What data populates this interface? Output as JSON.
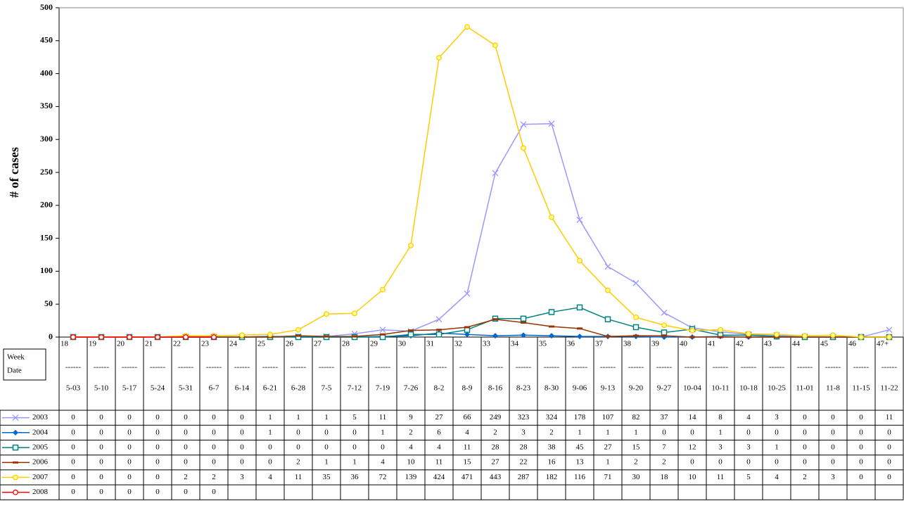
{
  "chart_data": {
    "type": "line",
    "y_label": "# of cases",
    "row_header_labels": [
      "Week",
      "Date"
    ],
    "separator": "------",
    "categories": [
      "18",
      "19",
      "20",
      "21",
      "22",
      "23",
      "24",
      "25",
      "26",
      "27",
      "28",
      "29",
      "30",
      "31",
      "32",
      "33",
      "34",
      "35",
      "36",
      "37",
      "38",
      "39",
      "40",
      "41",
      "42",
      "43",
      "44",
      "45",
      "46",
      "47+"
    ],
    "dates": [
      "5-03",
      "5-10",
      "5-17",
      "5-24",
      "5-31",
      "6-7",
      "6-14",
      "6-21",
      "6-28",
      "7-5",
      "7-12",
      "7-19",
      "7-26",
      "8-2",
      "8-9",
      "8-16",
      "8-23",
      "8-30",
      "9-06",
      "9-13",
      "9-20",
      "9-27",
      "10-04",
      "10-11",
      "10-18",
      "10-25",
      "11-01",
      "11-8",
      "11-15",
      "11-22"
    ],
    "ylim": [
      0,
      500
    ],
    "yticks": [
      0,
      50,
      100,
      150,
      200,
      250,
      300,
      350,
      400,
      450,
      500
    ],
    "series": [
      {
        "name": "2003",
        "color": "#9999ff",
        "marker": "x",
        "values": [
          0,
          0,
          0,
          0,
          0,
          0,
          0,
          1,
          1,
          1,
          5,
          11,
          9,
          27,
          66,
          249,
          323,
          324,
          178,
          107,
          82,
          37,
          14,
          8,
          4,
          3,
          0,
          0,
          0,
          11
        ]
      },
      {
        "name": "2004",
        "color": "#0066cc",
        "marker": "diamond",
        "values": [
          0,
          0,
          0,
          0,
          0,
          0,
          0,
          1,
          0,
          0,
          0,
          1,
          2,
          6,
          4,
          2,
          3,
          2,
          1,
          1,
          1,
          0,
          0,
          1,
          0,
          0,
          0,
          0,
          0,
          0
        ]
      },
      {
        "name": "2005",
        "color": "#008080",
        "marker": "square",
        "values": [
          0,
          0,
          0,
          0,
          0,
          0,
          0,
          0,
          0,
          0,
          0,
          0,
          4,
          4,
          11,
          28,
          28,
          38,
          45,
          27,
          15,
          7,
          12,
          3,
          3,
          1,
          0,
          0,
          0,
          0
        ]
      },
      {
        "name": "2006",
        "color": "#993300",
        "marker": "dash",
        "values": [
          0,
          0,
          0,
          0,
          0,
          0,
          0,
          0,
          2,
          1,
          1,
          4,
          10,
          11,
          15,
          27,
          22,
          16,
          13,
          1,
          2,
          2,
          0,
          0,
          0,
          0,
          0,
          0,
          0,
          0
        ]
      },
      {
        "name": "2007",
        "color": "#ffcc00",
        "marker": "circle",
        "values": [
          0,
          0,
          0,
          0,
          2,
          2,
          3,
          4,
          11,
          35,
          36,
          72,
          139,
          424,
          471,
          443,
          287,
          182,
          116,
          71,
          30,
          18,
          10,
          11,
          5,
          4,
          2,
          3,
          0,
          0
        ]
      },
      {
        "name": "2008",
        "color": "#ff0000",
        "marker": "circle",
        "values": [
          0,
          0,
          0,
          0,
          0,
          0,
          null,
          null,
          null,
          null,
          null,
          null,
          null,
          null,
          null,
          null,
          null,
          null,
          null,
          null,
          null,
          null,
          null,
          null,
          null,
          null,
          null,
          null,
          null,
          null
        ]
      }
    ]
  }
}
